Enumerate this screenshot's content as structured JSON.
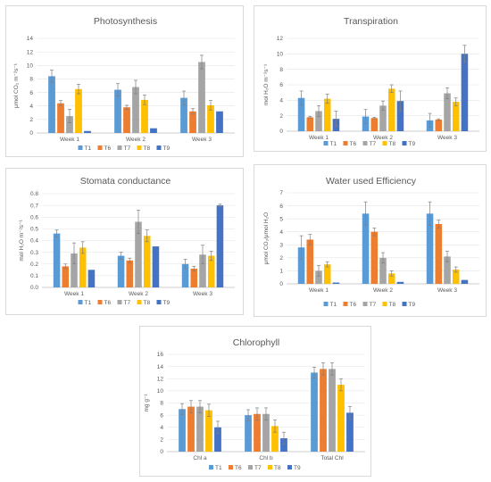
{
  "colors": {
    "T1": "#5b9bd5",
    "T6": "#ed7d31",
    "T7": "#a5a5a5",
    "T8": "#ffc000",
    "T9": "#4472c4"
  },
  "chart_data": [
    {
      "type": "bar",
      "title": "Photosynthesis",
      "ylabel": "μmol CO₂ m⁻²s⁻¹",
      "ylim": [
        0,
        14
      ],
      "ystep": 2,
      "ydecimals": 0,
      "categories": [
        "Week 1",
        "Week 2",
        "Week 3"
      ],
      "legend": "bottom",
      "series": [
        {
          "name": "T1",
          "values": [
            8.4,
            6.4,
            5.2
          ],
          "errors": [
            0.9,
            0.9,
            1.0
          ]
        },
        {
          "name": "T6",
          "values": [
            4.4,
            3.8,
            3.2
          ],
          "errors": [
            0.4,
            0.3,
            0.4
          ]
        },
        {
          "name": "T7",
          "values": [
            2.5,
            6.8,
            10.5
          ],
          "errors": [
            1.0,
            1.0,
            1.0
          ]
        },
        {
          "name": "T8",
          "values": [
            6.5,
            4.9,
            4.1
          ],
          "errors": [
            0.7,
            0.7,
            0.7
          ]
        },
        {
          "name": "T9",
          "values": [
            0.3,
            0.7,
            3.2
          ],
          "errors": [
            0,
            0,
            0
          ]
        }
      ]
    },
    {
      "type": "bar",
      "title": "Transpiration",
      "ylabel": "mol H₂O m⁻²s⁻¹",
      "ylim": [
        0,
        12
      ],
      "ystep": 2,
      "ydecimals": 0,
      "categories": [
        "Week 1",
        "Week 2",
        "Week 3"
      ],
      "legend": "bottom",
      "series": [
        {
          "name": "T1",
          "values": [
            4.3,
            1.9,
            1.4
          ],
          "errors": [
            0.9,
            0.9,
            0.9
          ]
        },
        {
          "name": "T6",
          "values": [
            1.8,
            1.7,
            1.5
          ],
          "errors": [
            0.1,
            0.1,
            0.1
          ]
        },
        {
          "name": "T7",
          "values": [
            2.6,
            3.3,
            4.9
          ],
          "errors": [
            0.7,
            0.6,
            0.7
          ]
        },
        {
          "name": "T8",
          "values": [
            4.2,
            5.5,
            3.8
          ],
          "errors": [
            0.6,
            0.5,
            0.5
          ]
        },
        {
          "name": "T9",
          "values": [
            1.6,
            3.9,
            10.0
          ],
          "errors": [
            1.0,
            1.3,
            1.1
          ]
        }
      ]
    },
    {
      "type": "bar",
      "title": "Stomata conductance",
      "ylabel": "mol H₂O m⁻²s⁻¹",
      "ylim": [
        0,
        0.8
      ],
      "ystep": 0.1,
      "ydecimals": 1,
      "categories": [
        "Week 1",
        "Week 2",
        "Week 3"
      ],
      "legend": "bottom",
      "series": [
        {
          "name": "T1",
          "values": [
            0.46,
            0.27,
            0.2
          ],
          "errors": [
            0.03,
            0.03,
            0.04
          ]
        },
        {
          "name": "T6",
          "values": [
            0.18,
            0.23,
            0.16
          ],
          "errors": [
            0.02,
            0.02,
            0.02
          ]
        },
        {
          "name": "T7",
          "values": [
            0.29,
            0.56,
            0.28
          ],
          "errors": [
            0.09,
            0.1,
            0.08
          ]
        },
        {
          "name": "T8",
          "values": [
            0.34,
            0.44,
            0.27
          ],
          "errors": [
            0.05,
            0.05,
            0.04
          ]
        },
        {
          "name": "T9",
          "values": [
            0.15,
            0.35,
            0.7
          ],
          "errors": [
            0,
            0,
            0.01
          ]
        }
      ]
    },
    {
      "type": "bar",
      "title": "Water used Efficiency",
      "ylabel": "μmol CO₂/μmol H₂O",
      "ylim": [
        0,
        7
      ],
      "ystep": 1,
      "ydecimals": 0,
      "categories": [
        "Week 1",
        "Week 2",
        "Week 3"
      ],
      "legend": "bottom",
      "series": [
        {
          "name": "T1",
          "values": [
            2.8,
            5.4,
            5.4
          ],
          "errors": [
            0.9,
            0.9,
            0.9
          ]
        },
        {
          "name": "T6",
          "values": [
            3.4,
            4.0,
            4.6
          ],
          "errors": [
            0.4,
            0.3,
            0.3
          ]
        },
        {
          "name": "T7",
          "values": [
            1.0,
            2.0,
            2.1
          ],
          "errors": [
            0.4,
            0.4,
            0.4
          ]
        },
        {
          "name": "T8",
          "values": [
            1.5,
            0.8,
            1.1
          ],
          "errors": [
            0.2,
            0.2,
            0.2
          ]
        },
        {
          "name": "T9",
          "values": [
            0.1,
            0.15,
            0.3
          ],
          "errors": [
            0,
            0,
            0
          ]
        }
      ]
    },
    {
      "type": "bar",
      "title": "Chlorophyll",
      "ylabel": "mg g⁻¹",
      "ylim": [
        0,
        16
      ],
      "ystep": 2,
      "ydecimals": 0,
      "categories": [
        "Chl a",
        "Chl b",
        "Total Chl"
      ],
      "legend": "bottom",
      "series": [
        {
          "name": "T1",
          "values": [
            7.0,
            6.0,
            13.0
          ],
          "errors": [
            0.9,
            0.9,
            0.9
          ]
        },
        {
          "name": "T6",
          "values": [
            7.4,
            6.2,
            13.6
          ],
          "errors": [
            1.0,
            1.0,
            1.0
          ]
        },
        {
          "name": "T7",
          "values": [
            7.4,
            6.2,
            13.6
          ],
          "errors": [
            1.0,
            1.0,
            1.0
          ]
        },
        {
          "name": "T8",
          "values": [
            6.8,
            4.2,
            11.0
          ],
          "errors": [
            1.0,
            1.0,
            1.0
          ]
        },
        {
          "name": "T9",
          "values": [
            4.0,
            2.2,
            6.4
          ],
          "errors": [
            1.0,
            1.0,
            1.0
          ]
        }
      ]
    }
  ]
}
